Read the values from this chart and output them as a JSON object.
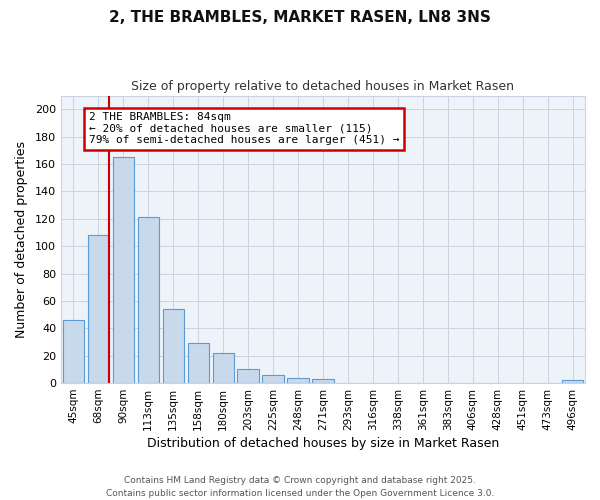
{
  "title": "2, THE BRAMBLES, MARKET RASEN, LN8 3NS",
  "subtitle": "Size of property relative to detached houses in Market Rasen",
  "xlabel": "Distribution of detached houses by size in Market Rasen",
  "ylabel": "Number of detached properties",
  "categories": [
    "45sqm",
    "68sqm",
    "90sqm",
    "113sqm",
    "135sqm",
    "158sqm",
    "180sqm",
    "203sqm",
    "225sqm",
    "248sqm",
    "271sqm",
    "293sqm",
    "316sqm",
    "338sqm",
    "361sqm",
    "383sqm",
    "406sqm",
    "428sqm",
    "451sqm",
    "473sqm",
    "496sqm"
  ],
  "values": [
    46,
    108,
    165,
    121,
    54,
    29,
    22,
    10,
    6,
    4,
    3,
    0,
    0,
    0,
    0,
    0,
    0,
    0,
    0,
    0,
    2
  ],
  "bar_color": "#c9d9ec",
  "bar_edge_color": "#5b9bd5",
  "annotation_text_1": "2 THE BRAMBLES: 84sqm",
  "annotation_text_2": "← 20% of detached houses are smaller (115)",
  "annotation_text_3": "79% of semi-detached houses are larger (451) →",
  "annotation_box_color": "#ffffff",
  "annotation_border_color": "#cc0000",
  "vline_color": "#cc0000",
  "background_color": "#ffffff",
  "plot_background": "#eef3fa",
  "grid_color": "#c8d4e3",
  "footer_text": "Contains HM Land Registry data © Crown copyright and database right 2025.\nContains public sector information licensed under the Open Government Licence 3.0.",
  "ylim": [
    0,
    210
  ],
  "yticks": [
    0,
    20,
    40,
    60,
    80,
    100,
    120,
    140,
    160,
    180,
    200
  ]
}
